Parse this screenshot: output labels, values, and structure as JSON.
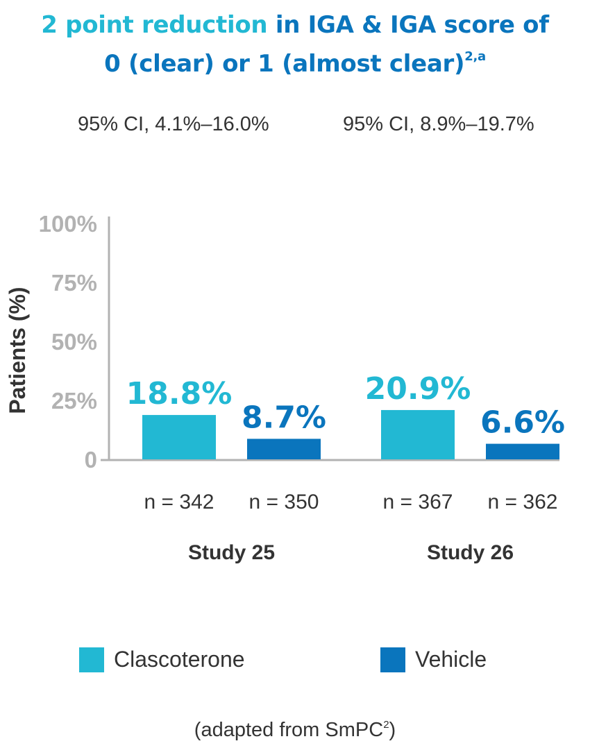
{
  "header": {
    "line1_highlight": "2 point reduction",
    "line1_rest": " in IGA & IGA score of",
    "line2": "0 (clear) or 1 (almost clear)",
    "line2_sup": "2,a"
  },
  "ci_labels": [
    "95% CI, 4.1%–16.0%",
    "95% CI, 8.9%–19.7%"
  ],
  "colors": {
    "clascoterone": "#22b8d3",
    "vehicle": "#0a75bd",
    "axis": "#b2b2b2",
    "text": "#333333"
  },
  "chart_data": {
    "type": "bar",
    "categories": [
      "Study 25",
      "Study 26"
    ],
    "series": [
      {
        "name": "Clascoterone",
        "values": [
          18.8,
          20.9
        ],
        "labels": [
          "18.8%",
          "20.9%"
        ],
        "n": [
          "n = 342",
          "n = 367"
        ]
      },
      {
        "name": "Vehicle",
        "values": [
          8.7,
          6.6
        ],
        "labels": [
          "8.7%",
          "6.6%"
        ],
        "n": [
          "n = 350",
          "n = 362"
        ]
      }
    ],
    "ylabel": "Patients (%)",
    "ylim": [
      0,
      100
    ],
    "yticks": [
      0,
      25,
      50,
      75,
      100
    ],
    "ytick_labels": [
      "0",
      "25%",
      "50%",
      "75%",
      "100%"
    ],
    "legend_position": "bottom"
  },
  "footer": {
    "text": "(adapted from SmPC",
    "sup": "2",
    "close": ")"
  }
}
